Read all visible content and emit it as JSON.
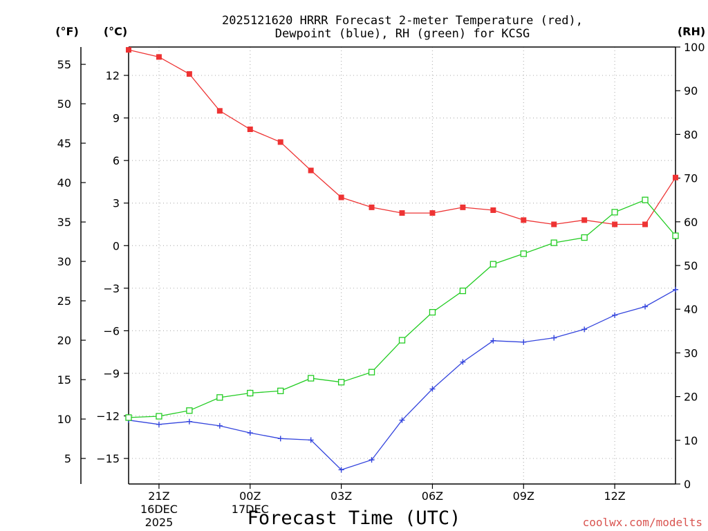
{
  "chart_data": {
    "type": "line",
    "title_lines": [
      "2025121620 HRRR Forecast 2-meter Temperature (red),",
      "Dewpoint (blue), RH (green) for KCSG"
    ],
    "xlabel": "Forecast Time (UTC)",
    "credit": "coolwx.com/modelts",
    "units": {
      "fahrenheit": "(°F)",
      "celsius": "(°C)",
      "rh": "(RH)"
    },
    "x_hours": [
      20,
      21,
      22,
      23,
      24,
      25,
      26,
      27,
      28,
      29,
      30,
      31,
      32,
      33,
      34,
      35,
      36,
      37,
      38
    ],
    "xlim": [
      20,
      38
    ],
    "x_ticks": [
      {
        "hour": 21,
        "lines": [
          "21Z",
          "16DEC",
          "2025"
        ]
      },
      {
        "hour": 24,
        "lines": [
          "00Z",
          "17DEC"
        ]
      },
      {
        "hour": 27,
        "lines": [
          "03Z"
        ]
      },
      {
        "hour": 30,
        "lines": [
          "06Z"
        ]
      },
      {
        "hour": 33,
        "lines": [
          "09Z"
        ]
      },
      {
        "hour": 36,
        "lines": [
          "12Z"
        ]
      }
    ],
    "celsius_axis": {
      "ylim": [
        -16.8,
        14.0
      ],
      "ticks": [
        12,
        9,
        6,
        3,
        0,
        -3,
        -6,
        -9,
        -12,
        -15
      ],
      "tick_labels": [
        "12",
        "9",
        "6",
        "3",
        "0",
        "−3",
        "−6",
        "−9",
        "−12",
        "−15"
      ]
    },
    "fahrenheit_axis": {
      "ticks": [
        55,
        50,
        45,
        40,
        35,
        30,
        25,
        20,
        15,
        10,
        5
      ],
      "tick_labels": [
        "55",
        "50",
        "45",
        "40",
        "35",
        "30",
        "25",
        "20",
        "15",
        "10",
        "5"
      ]
    },
    "rh_axis": {
      "ylim": [
        0,
        100
      ],
      "ticks": [
        100,
        90,
        80,
        70,
        60,
        50,
        40,
        30,
        20,
        10,
        0
      ],
      "tick_labels": [
        "100",
        "90",
        "80",
        "70",
        "60",
        "50",
        "40",
        "30",
        "20",
        "10",
        "0"
      ]
    },
    "grid": true,
    "series": [
      {
        "name": "2-meter Temperature",
        "axis": "celsius",
        "color": "#ee3333",
        "marker": "filled-square",
        "values": [
          13.8,
          13.3,
          12.1,
          9.5,
          8.2,
          7.3,
          5.3,
          3.4,
          2.7,
          2.3,
          2.3,
          2.7,
          2.5,
          1.8,
          1.5,
          1.8,
          1.5,
          1.5,
          4.8
        ]
      },
      {
        "name": "Dewpoint",
        "axis": "celsius",
        "color": "#3344dd",
        "marker": "plus",
        "values": [
          -12.3,
          -12.6,
          -12.4,
          -12.7,
          -13.2,
          -13.6,
          -13.7,
          -15.8,
          -15.1,
          -12.3,
          -10.1,
          -8.2,
          -6.7,
          -6.8,
          -6.5,
          -5.9,
          -4.9,
          -4.3,
          -3.1
        ]
      },
      {
        "name": "Relative Humidity",
        "axis": "rh",
        "color": "#22cc22",
        "marker": "open-square",
        "values": [
          15.2,
          15.5,
          16.8,
          19.8,
          20.8,
          21.3,
          24.2,
          23.3,
          25.6,
          32.9,
          39.3,
          44.2,
          50.3,
          52.7,
          55.2,
          56.4,
          62.2,
          65.0,
          56.8
        ]
      }
    ]
  }
}
